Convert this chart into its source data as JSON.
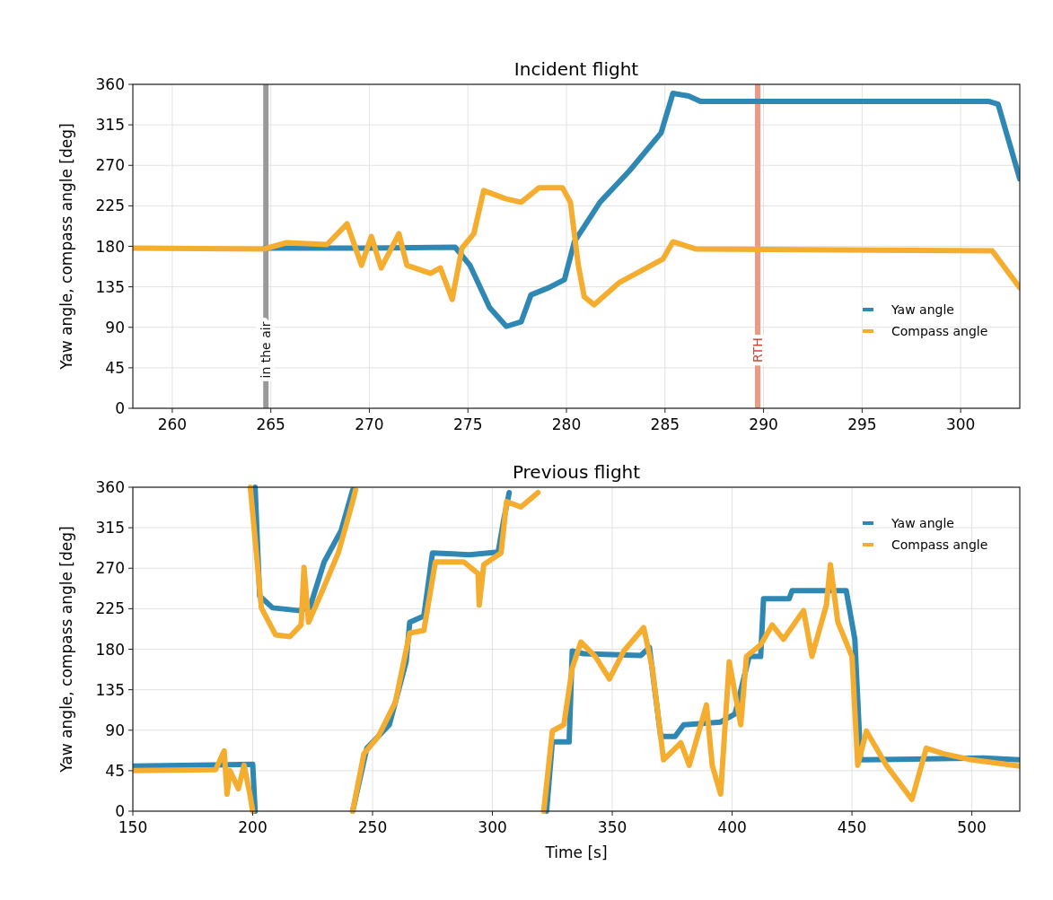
{
  "chart_data": [
    {
      "type": "line",
      "title": "Incident flight",
      "ylabel": "Yaw angle, compass angle [deg]",
      "xlim": [
        258,
        303
      ],
      "xticks": [
        260,
        265,
        270,
        275,
        280,
        285,
        290,
        295,
        300
      ],
      "ylim": [
        0,
        360
      ],
      "yticks": [
        0,
        45,
        90,
        135,
        180,
        225,
        270,
        315,
        360
      ],
      "grid": true,
      "legend": "bottom right",
      "series": [
        {
          "name": "Yaw angle",
          "color": "#2f88b3",
          "x": [
            264.7,
            270,
            274.35,
            275.1,
            276.1,
            276.95,
            277.7,
            278.2,
            279.1,
            279.9,
            280.4,
            281.7,
            283.2,
            284.8,
            285.4,
            286.2,
            286.8,
            301.45,
            301.9,
            303
          ],
          "values": [
            178,
            178,
            179,
            159,
            112,
            91,
            96,
            126,
            134,
            143,
            185,
            229,
            264,
            306,
            350,
            347,
            341,
            341,
            338,
            255
          ]
        },
        {
          "name": "Compass angle",
          "color": "#f5ad30",
          "x": [
            258,
            264.65,
            265.8,
            267.85,
            268.87,
            269.6,
            270.1,
            270.6,
            271.5,
            271.9,
            273.1,
            273.6,
            274.2,
            274.7,
            275.3,
            275.8,
            276.9,
            277.7,
            278.6,
            279.8,
            280.2,
            280.6,
            280.9,
            281.4,
            282.7,
            284.9,
            285.4,
            286.6,
            301.6,
            303
          ],
          "values": [
            178,
            177,
            184,
            182,
            205,
            159,
            191,
            156,
            194,
            159,
            150,
            156,
            121,
            178,
            194,
            242,
            233,
            229,
            245,
            245,
            229,
            159,
            124,
            115,
            140,
            166,
            185,
            177,
            175,
            134
          ]
        }
      ],
      "ref_lines": [
        {
          "axis": "x",
          "value": 264.75,
          "label": "in the air",
          "color": "#999999"
        },
        {
          "axis": "x",
          "value": 289.7,
          "label": "RTH",
          "color": "#ef9a80"
        }
      ]
    },
    {
      "type": "line",
      "title": "Previous flight",
      "xlabel": "Time [s]",
      "ylabel": "Yaw angle, compass angle [deg]",
      "xlim": [
        150,
        520
      ],
      "xticks": [
        150,
        200,
        250,
        300,
        350,
        400,
        450,
        500
      ],
      "ylim": [
        0,
        360
      ],
      "yticks": [
        0,
        45,
        90,
        135,
        180,
        225,
        270,
        315,
        360
      ],
      "grid": true,
      "legend": "top right",
      "series": [
        {
          "name": "Yaw angle",
          "color": "#2f88b3",
          "x": [
            150,
            200,
            201,
            null,
            201,
            202.9,
            208.3,
            219,
            223.8,
            229.8,
            236.9,
            241.7,
            null,
            241.7,
            247.6,
            257,
            264,
            265.5,
            271.4,
            275,
            290.5,
            302.4,
            304.8,
            307,
            null,
            322.6,
            325,
            332,
            333.3,
            338,
            361.9,
            365.5,
            370.2,
            376.2,
            379.8,
            395.2,
            401.2,
            407.1,
            411.9,
            413.1,
            423.8,
            425,
            447.6,
            451.2,
            453.6,
            504.8,
            520
          ],
          "values": [
            50,
            52,
            0,
            null,
            360,
            239,
            226,
            223,
            226,
            277,
            312,
            357,
            null,
            0,
            70,
            96,
            166,
            210,
            217,
            287,
            285,
            288,
            325,
            354,
            null,
            0,
            77,
            77,
            178,
            175,
            173,
            182,
            83,
            83,
            96,
            99,
            108,
            172,
            172,
            236,
            236,
            245,
            245,
            191,
            57,
            59,
            57
          ]
        },
        {
          "name": "Compass angle",
          "color": "#f5ad30",
          "x": [
            150,
            184.5,
            188.1,
            189.3,
            190.5,
            194,
            196.4,
            198.8,
            200,
            null,
            199,
            203.6,
            209.5,
            215.5,
            220.2,
            221.4,
            223.3,
            228.6,
            235.7,
            241.7,
            242.9,
            null,
            241.7,
            246.4,
            252.4,
            259.5,
            265.5,
            271.4,
            276.2,
            288.1,
            294,
            294.5,
            296.4,
            303.6,
            305.9,
            311.9,
            319,
            null,
            321.4,
            325,
            329.8,
            333.3,
            336.9,
            342.9,
            348.8,
            354.8,
            363.1,
            366.7,
            371.4,
            378.6,
            382.1,
            389.3,
            391.7,
            395.2,
            398.8,
            403.6,
            406,
            411.9,
            416.7,
            421.4,
            429.8,
            433.3,
            439.3,
            441,
            444.1,
            450,
            452.4,
            456,
            464.3,
            475,
            481,
            488,
            500,
            520
          ],
          "values": [
            45,
            46,
            67,
            19,
            45,
            25,
            51,
            19,
            0,
            null,
            360,
            226,
            196,
            194,
            207,
            271,
            210,
            242,
            287,
            344,
            357,
            null,
            0,
            64,
            83,
            121,
            198,
            201,
            277,
            277,
            264,
            229,
            274,
            287,
            344,
            338,
            354,
            null,
            0,
            89,
            96,
            159,
            188,
            172,
            147,
            178,
            204,
            159,
            57,
            76,
            51,
            118,
            51,
            19,
            166,
            96,
            172,
            185,
            207,
            191,
            223,
            172,
            229,
            274,
            210,
            172,
            51,
            89,
            51,
            13,
            70,
            64,
            57,
            50
          ]
        }
      ]
    }
  ]
}
